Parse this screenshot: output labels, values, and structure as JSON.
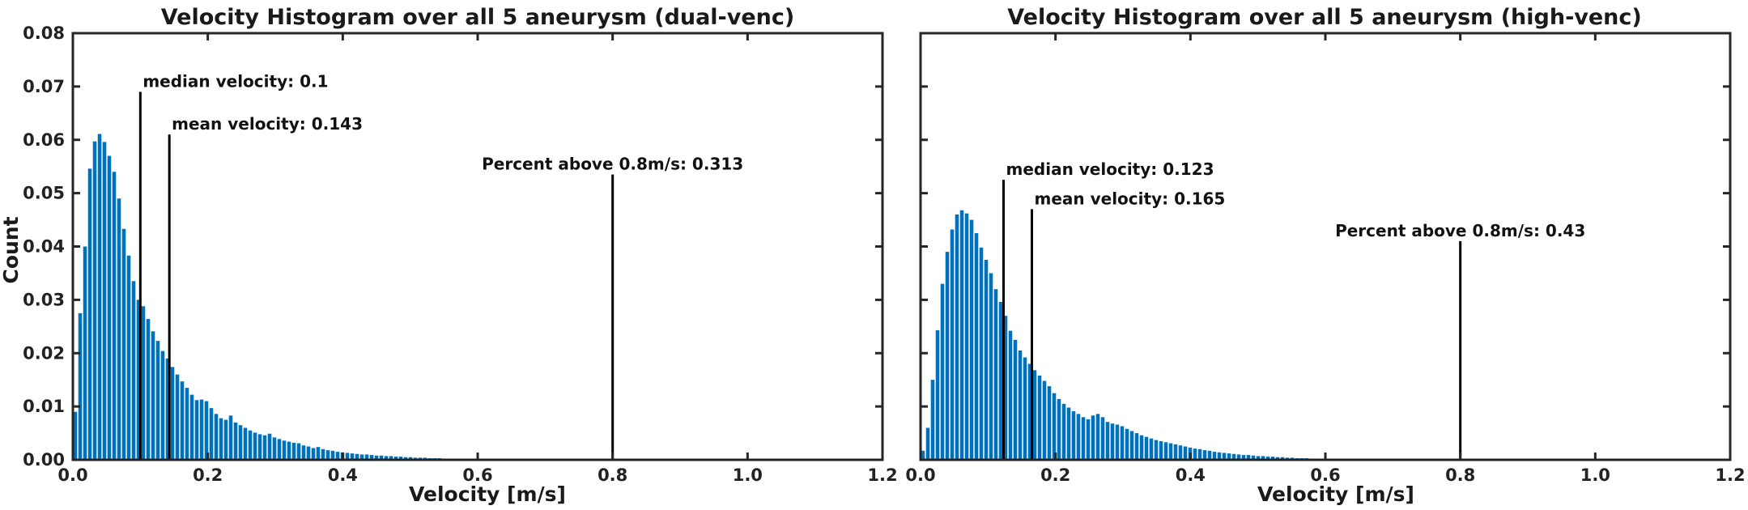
{
  "colors": {
    "bar": "#0072BD",
    "axis": "#262626",
    "marker": "#000000"
  },
  "chart_data": [
    {
      "type": "bar",
      "title": "Velocity Histogram over all 5 aneurysm (dual-venc)",
      "xlabel": "Velocity [m/s]",
      "ylabel": "Count",
      "xlim": [
        0,
        1.2
      ],
      "ylim": [
        0,
        0.08
      ],
      "xticks": [
        0,
        0.2,
        0.4,
        0.6,
        0.8,
        1.0,
        1.2
      ],
      "xtick_labels": [
        "0.0",
        "0.2",
        "0.4",
        "0.6",
        "0.8",
        "1.0",
        "1.2"
      ],
      "yticks": [
        0,
        0.01,
        0.02,
        0.03,
        0.04,
        0.05,
        0.06,
        0.07,
        0.08
      ],
      "ytick_labels": [
        "0.00",
        "0.01",
        "0.02",
        "0.03",
        "0.04",
        "0.05",
        "0.06",
        "0.07",
        "0.08"
      ],
      "bin_width": 0.0072,
      "bin_start": 0.0,
      "values": [
        0.009,
        0.0275,
        0.04,
        0.0546,
        0.0597,
        0.0611,
        0.0596,
        0.057,
        0.054,
        0.049,
        0.0433,
        0.0383,
        0.0335,
        0.03,
        0.0288,
        0.0264,
        0.0241,
        0.0223,
        0.0204,
        0.019,
        0.0174,
        0.016,
        0.0147,
        0.0135,
        0.0122,
        0.0112,
        0.0113,
        0.011,
        0.0097,
        0.0086,
        0.0078,
        0.0075,
        0.0083,
        0.007,
        0.0065,
        0.006,
        0.0055,
        0.0051,
        0.0048,
        0.0046,
        0.0049,
        0.0042,
        0.0039,
        0.0036,
        0.0034,
        0.0032,
        0.0031,
        0.0027,
        0.0025,
        0.0022,
        0.0024,
        0.002,
        0.0018,
        0.0017,
        0.0015,
        0.0014,
        0.0013,
        0.0012,
        0.0011,
        0.001,
        0.001,
        0.0009,
        0.0008,
        0.0008,
        0.0007,
        0.0007,
        0.0006,
        0.0006,
        0.0005,
        0.0005,
        0.0004,
        0.0004,
        0.0004,
        0.0003,
        0.0003,
        0.0003,
        0.0002,
        0.0002,
        0.0002,
        0.0002,
        0.0002,
        0.0001,
        0.0001,
        0.0001,
        0.0001,
        0.0001,
        0.0001,
        0.0001,
        0.0001,
        0.0001
      ],
      "markers": [
        {
          "x": 0.1,
          "height": 0.069,
          "label": "median velocity: 0.1"
        },
        {
          "x": 0.143,
          "height": 0.061,
          "label": "mean velocity: 0.143"
        },
        {
          "x": 0.8,
          "height": 0.0535,
          "label": "Percent above 0.8m/s: 0.313"
        }
      ]
    },
    {
      "type": "bar",
      "title": "Velocity Histogram over all 5 aneurysm (high-venc)",
      "xlabel": "Velocity [m/s]",
      "ylabel": "",
      "xlim": [
        0,
        1.2
      ],
      "ylim": [
        0,
        0.08
      ],
      "xticks": [
        0,
        0.2,
        0.4,
        0.6,
        0.8,
        1.0,
        1.2
      ],
      "xtick_labels": [
        "0.0",
        "0.2",
        "0.4",
        "0.6",
        "0.8",
        "1.0",
        "1.2"
      ],
      "yticks": [
        0,
        0.01,
        0.02,
        0.03,
        0.04,
        0.05,
        0.06,
        0.07,
        0.08
      ],
      "ytick_labels": [],
      "bin_width": 0.0072,
      "bin_start": 0.0,
      "values": [
        0.0017,
        0.006,
        0.015,
        0.0243,
        0.033,
        0.039,
        0.0432,
        0.046,
        0.0468,
        0.0462,
        0.045,
        0.0425,
        0.0398,
        0.0375,
        0.035,
        0.032,
        0.0296,
        0.027,
        0.0242,
        0.0225,
        0.0205,
        0.0192,
        0.018,
        0.0168,
        0.0158,
        0.0148,
        0.0138,
        0.0125,
        0.0114,
        0.0105,
        0.0098,
        0.0091,
        0.0086,
        0.008,
        0.0076,
        0.0083,
        0.0086,
        0.008,
        0.0071,
        0.0068,
        0.0066,
        0.0063,
        0.0058,
        0.0054,
        0.005,
        0.0046,
        0.0043,
        0.004,
        0.0037,
        0.0035,
        0.0033,
        0.0031,
        0.0029,
        0.0027,
        0.0025,
        0.0023,
        0.0021,
        0.002,
        0.0018,
        0.0017,
        0.0015,
        0.0014,
        0.0013,
        0.0012,
        0.0011,
        0.001,
        0.0009,
        0.0009,
        0.0008,
        0.0007,
        0.0007,
        0.0006,
        0.0006,
        0.0005,
        0.0005,
        0.0004,
        0.0004,
        0.0003,
        0.0003,
        0.0003,
        0.0002,
        0.0002,
        0.0002,
        0.0002,
        0.0001,
        0.0001,
        0.0001,
        0.0001,
        0.0001,
        0.0001
      ],
      "markers": [
        {
          "x": 0.123,
          "height": 0.0525,
          "label": "median velocity: 0.123"
        },
        {
          "x": 0.165,
          "height": 0.047,
          "label": "mean velocity: 0.165"
        },
        {
          "x": 0.8,
          "height": 0.041,
          "label": "Percent above 0.8m/s: 0.43"
        }
      ]
    }
  ]
}
